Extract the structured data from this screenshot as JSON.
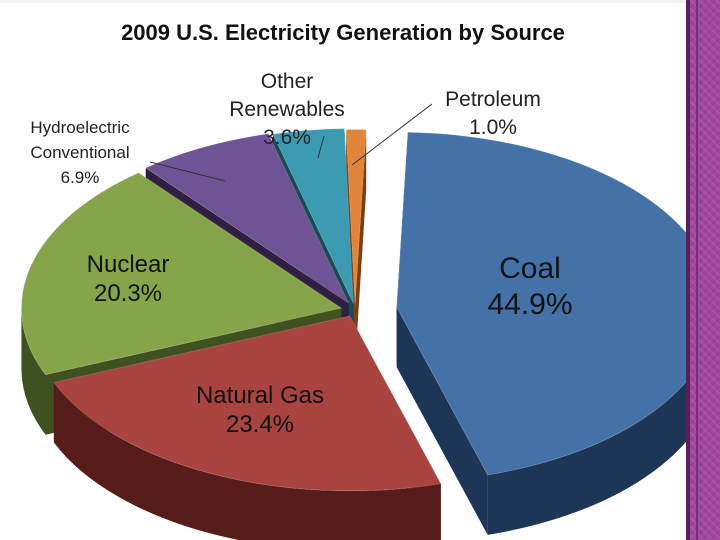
{
  "chart_data": {
    "type": "pie",
    "title": "2009 U.S. Electricity Generation by Source",
    "slices": [
      {
        "key": "coal",
        "label": "Coal",
        "value": 44.9,
        "value_label": "44.9%",
        "color": "#4472a8",
        "dark": "#1e3656"
      },
      {
        "key": "gas",
        "label": "Natural Gas",
        "value": 23.4,
        "value_label": "23.4%",
        "color": "#a84340",
        "dark": "#561c1a"
      },
      {
        "key": "nuclear",
        "label": "Nuclear",
        "value": 20.3,
        "value_label": "20.3%",
        "color": "#86a44a",
        "dark": "#3f5120"
      },
      {
        "key": "hydro",
        "label": "Hydroelectric\nConventional",
        "value": 6.9,
        "value_label": "6.9%",
        "color": "#6e5494",
        "dark": "#2d2040"
      },
      {
        "key": "other",
        "label": "Other\nRenewables",
        "value": 3.6,
        "value_label": "3.6%",
        "color": "#3c9ab2",
        "dark": "#184a56"
      },
      {
        "key": "petro",
        "label": "Petroleum",
        "value": 1.0,
        "value_label": "1.0%",
        "color": "#e0853a",
        "dark": "#7a3e12"
      }
    ]
  }
}
